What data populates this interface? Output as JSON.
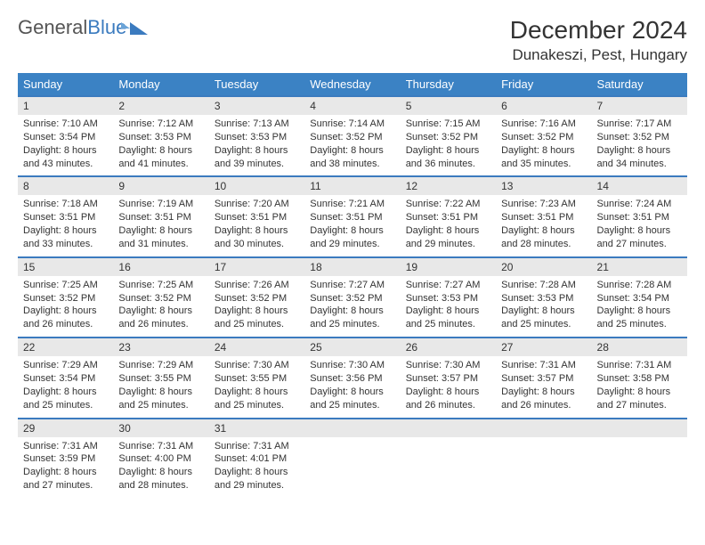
{
  "logo": {
    "text1": "General",
    "text2": "Blue"
  },
  "title": "December 2024",
  "location": "Dunakeszi, Pest, Hungary",
  "colors": {
    "header_bg": "#3b82c4",
    "border": "#3b7bbf",
    "daynum_bg": "#e8e8e8",
    "text": "#333333",
    "logo_accent": "#3b7bbf"
  },
  "weekdays": [
    "Sunday",
    "Monday",
    "Tuesday",
    "Wednesday",
    "Thursday",
    "Friday",
    "Saturday"
  ],
  "days": [
    {
      "n": 1,
      "sr": "7:10 AM",
      "ss": "3:54 PM",
      "dl": "8 hours and 43 minutes."
    },
    {
      "n": 2,
      "sr": "7:12 AM",
      "ss": "3:53 PM",
      "dl": "8 hours and 41 minutes."
    },
    {
      "n": 3,
      "sr": "7:13 AM",
      "ss": "3:53 PM",
      "dl": "8 hours and 39 minutes."
    },
    {
      "n": 4,
      "sr": "7:14 AM",
      "ss": "3:52 PM",
      "dl": "8 hours and 38 minutes."
    },
    {
      "n": 5,
      "sr": "7:15 AM",
      "ss": "3:52 PM",
      "dl": "8 hours and 36 minutes."
    },
    {
      "n": 6,
      "sr": "7:16 AM",
      "ss": "3:52 PM",
      "dl": "8 hours and 35 minutes."
    },
    {
      "n": 7,
      "sr": "7:17 AM",
      "ss": "3:52 PM",
      "dl": "8 hours and 34 minutes."
    },
    {
      "n": 8,
      "sr": "7:18 AM",
      "ss": "3:51 PM",
      "dl": "8 hours and 33 minutes."
    },
    {
      "n": 9,
      "sr": "7:19 AM",
      "ss": "3:51 PM",
      "dl": "8 hours and 31 minutes."
    },
    {
      "n": 10,
      "sr": "7:20 AM",
      "ss": "3:51 PM",
      "dl": "8 hours and 30 minutes."
    },
    {
      "n": 11,
      "sr": "7:21 AM",
      "ss": "3:51 PM",
      "dl": "8 hours and 29 minutes."
    },
    {
      "n": 12,
      "sr": "7:22 AM",
      "ss": "3:51 PM",
      "dl": "8 hours and 29 minutes."
    },
    {
      "n": 13,
      "sr": "7:23 AM",
      "ss": "3:51 PM",
      "dl": "8 hours and 28 minutes."
    },
    {
      "n": 14,
      "sr": "7:24 AM",
      "ss": "3:51 PM",
      "dl": "8 hours and 27 minutes."
    },
    {
      "n": 15,
      "sr": "7:25 AM",
      "ss": "3:52 PM",
      "dl": "8 hours and 26 minutes."
    },
    {
      "n": 16,
      "sr": "7:25 AM",
      "ss": "3:52 PM",
      "dl": "8 hours and 26 minutes."
    },
    {
      "n": 17,
      "sr": "7:26 AM",
      "ss": "3:52 PM",
      "dl": "8 hours and 25 minutes."
    },
    {
      "n": 18,
      "sr": "7:27 AM",
      "ss": "3:52 PM",
      "dl": "8 hours and 25 minutes."
    },
    {
      "n": 19,
      "sr": "7:27 AM",
      "ss": "3:53 PM",
      "dl": "8 hours and 25 minutes."
    },
    {
      "n": 20,
      "sr": "7:28 AM",
      "ss": "3:53 PM",
      "dl": "8 hours and 25 minutes."
    },
    {
      "n": 21,
      "sr": "7:28 AM",
      "ss": "3:54 PM",
      "dl": "8 hours and 25 minutes."
    },
    {
      "n": 22,
      "sr": "7:29 AM",
      "ss": "3:54 PM",
      "dl": "8 hours and 25 minutes."
    },
    {
      "n": 23,
      "sr": "7:29 AM",
      "ss": "3:55 PM",
      "dl": "8 hours and 25 minutes."
    },
    {
      "n": 24,
      "sr": "7:30 AM",
      "ss": "3:55 PM",
      "dl": "8 hours and 25 minutes."
    },
    {
      "n": 25,
      "sr": "7:30 AM",
      "ss": "3:56 PM",
      "dl": "8 hours and 25 minutes."
    },
    {
      "n": 26,
      "sr": "7:30 AM",
      "ss": "3:57 PM",
      "dl": "8 hours and 26 minutes."
    },
    {
      "n": 27,
      "sr": "7:31 AM",
      "ss": "3:57 PM",
      "dl": "8 hours and 26 minutes."
    },
    {
      "n": 28,
      "sr": "7:31 AM",
      "ss": "3:58 PM",
      "dl": "8 hours and 27 minutes."
    },
    {
      "n": 29,
      "sr": "7:31 AM",
      "ss": "3:59 PM",
      "dl": "8 hours and 27 minutes."
    },
    {
      "n": 30,
      "sr": "7:31 AM",
      "ss": "4:00 PM",
      "dl": "8 hours and 28 minutes."
    },
    {
      "n": 31,
      "sr": "7:31 AM",
      "ss": "4:01 PM",
      "dl": "8 hours and 29 minutes."
    }
  ],
  "labels": {
    "sunrise": "Sunrise:",
    "sunset": "Sunset:",
    "daylight": "Daylight:"
  },
  "layout": {
    "first_weekday_index": 0,
    "total_cells": 35
  }
}
